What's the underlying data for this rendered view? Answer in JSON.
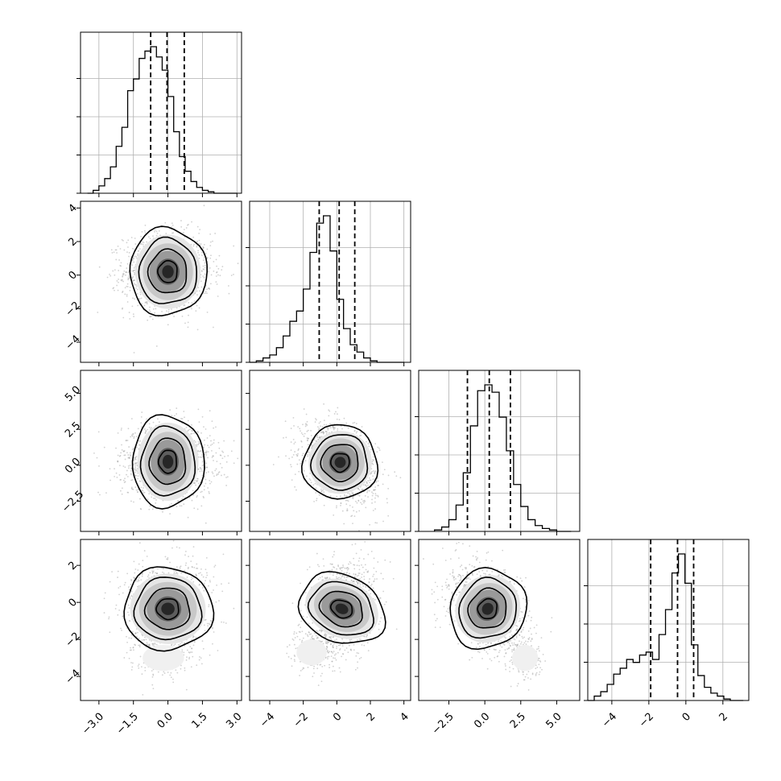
{
  "chart_data": {
    "type": "scatter",
    "title": "",
    "plot_kind": "corner",
    "parameters": 4,
    "grid": true,
    "quantiles": [
      0.16,
      0.5,
      0.84
    ],
    "contour_levels_sigma": [
      0.5,
      1.0,
      1.5,
      2.0
    ],
    "samples_per_panel": 1500,
    "axes": [
      {
        "range": [
          -3.8,
          3.2
        ],
        "ticks": [
          -3.0,
          -1.5,
          0.0,
          1.5,
          3.0
        ],
        "tick_labels": [
          "−3.0",
          "−1.5",
          "0.0",
          "1.5",
          "3.0"
        ]
      },
      {
        "range": [
          -5.2,
          4.4
        ],
        "ticks": [
          -4,
          -2,
          0,
          2,
          4
        ],
        "tick_labels": [
          "−4",
          "−2",
          "0",
          "2",
          "4"
        ]
      },
      {
        "range": [
          -4.6,
          6.6
        ],
        "ticks": [
          -2.5,
          0.0,
          2.5,
          5.0
        ],
        "tick_labels": [
          "−2.5",
          "0.0",
          "2.5",
          "5.0"
        ]
      },
      {
        "range": [
          -5.3,
          3.4
        ],
        "ticks": [
          -4,
          -2,
          0,
          2
        ],
        "tick_labels": [
          "−4",
          "−2",
          "0",
          "2"
        ]
      }
    ],
    "marginals": [
      {
        "dim": 0,
        "quantile_values": [
          -0.75,
          -0.04,
          0.71
        ],
        "bin_width": 0.25,
        "bins": [
          -3.5,
          -3.25,
          -3.0,
          -2.75,
          -2.5,
          -2.25,
          -2.0,
          -1.75,
          -1.5,
          -1.25,
          -1.0,
          -0.75,
          -0.5,
          -0.25,
          0.0,
          0.25,
          0.5,
          0.75,
          1.0,
          1.25,
          1.5,
          1.75,
          2.0,
          2.25,
          2.5,
          2.75,
          3.0
        ],
        "counts": [
          0,
          0.02,
          0.05,
          0.1,
          0.18,
          0.32,
          0.45,
          0.7,
          0.78,
          0.92,
          0.97,
          1.0,
          0.93,
          0.84,
          0.66,
          0.42,
          0.25,
          0.15,
          0.08,
          0.04,
          0.02,
          0.01,
          0,
          0,
          0,
          0
        ]
      },
      {
        "dim": 1,
        "quantile_values": [
          -1.05,
          0.14,
          1.07
        ],
        "bin_width": 0.4,
        "bins": [
          -5.2,
          -4.8,
          -4.4,
          -4.0,
          -3.6,
          -3.2,
          -2.8,
          -2.4,
          -2.0,
          -1.6,
          -1.2,
          -0.8,
          -0.4,
          0.0,
          0.4,
          0.8,
          1.2,
          1.6,
          2.0,
          2.4,
          2.8,
          3.2,
          3.6,
          4.0
        ],
        "counts": [
          0,
          0.01,
          0.03,
          0.05,
          0.1,
          0.18,
          0.28,
          0.35,
          0.5,
          0.75,
          0.95,
          1.0,
          0.76,
          0.43,
          0.23,
          0.12,
          0.07,
          0.03,
          0.01,
          0,
          0,
          0,
          0
        ]
      },
      {
        "dim": 2,
        "quantile_values": [
          -1.21,
          0.31,
          1.78
        ],
        "bin_width": 0.5,
        "bins": [
          -3.5,
          -3.0,
          -2.5,
          -2.0,
          -1.5,
          -1.0,
          -0.5,
          0.0,
          0.5,
          1.0,
          1.5,
          2.0,
          2.5,
          3.0,
          3.5,
          4.0,
          4.5,
          5.0,
          5.5,
          6.0
        ],
        "counts": [
          0.01,
          0.03,
          0.08,
          0.18,
          0.4,
          0.72,
          0.96,
          1.0,
          0.95,
          0.78,
          0.55,
          0.32,
          0.17,
          0.08,
          0.04,
          0.02,
          0.01,
          0,
          0
        ]
      },
      {
        "dim": 3,
        "quantile_values": [
          -1.9,
          -0.45,
          0.42
        ],
        "bin_width": 0.35,
        "bins": [
          -5.3,
          -4.95,
          -4.6,
          -4.25,
          -3.9,
          -3.55,
          -3.2,
          -2.85,
          -2.5,
          -2.15,
          -1.8,
          -1.45,
          -1.1,
          -0.75,
          -0.4,
          -0.05,
          0.3,
          0.65,
          1.0,
          1.35,
          1.7,
          2.05,
          2.4,
          2.75,
          3.1
        ],
        "counts": [
          0,
          0.03,
          0.06,
          0.11,
          0.18,
          0.22,
          0.28,
          0.26,
          0.31,
          0.33,
          0.28,
          0.45,
          0.62,
          0.87,
          1.0,
          0.8,
          0.38,
          0.17,
          0.09,
          0.05,
          0.03,
          0.01,
          0,
          0
        ]
      }
    ],
    "joint_panels": [
      {
        "x_dim": 0,
        "y_dim": 1,
        "mean": [
          0.0,
          0.2
        ],
        "sigma": [
          0.95,
          1.15
        ],
        "correlation": 0.0
      },
      {
        "x_dim": 0,
        "y_dim": 2,
        "mean": [
          0.0,
          0.25
        ],
        "sigma": [
          1.0,
          1.25
        ],
        "correlation": 0.0
      },
      {
        "x_dim": 1,
        "y_dim": 2,
        "mean": [
          0.2,
          0.2
        ],
        "sigma": [
          1.1,
          1.3
        ],
        "correlation": -0.35
      },
      {
        "x_dim": 0,
        "y_dim": 3,
        "mean": [
          0.0,
          -0.35
        ],
        "sigma": [
          0.9,
          1.2
        ],
        "correlation": 0.05,
        "tail": [
          -0.2,
          -3.0
        ]
      },
      {
        "x_dim": 1,
        "y_dim": 3,
        "mean": [
          0.3,
          -0.35
        ],
        "sigma": [
          1.0,
          1.2
        ],
        "correlation": 0.2,
        "tail": [
          -1.5,
          -2.7
        ]
      },
      {
        "x_dim": 2,
        "y_dim": 3,
        "mean": [
          0.2,
          -0.35
        ],
        "sigma": [
          1.3,
          1.1
        ],
        "correlation": -0.3,
        "tail": [
          2.8,
          -3.0
        ]
      }
    ]
  }
}
